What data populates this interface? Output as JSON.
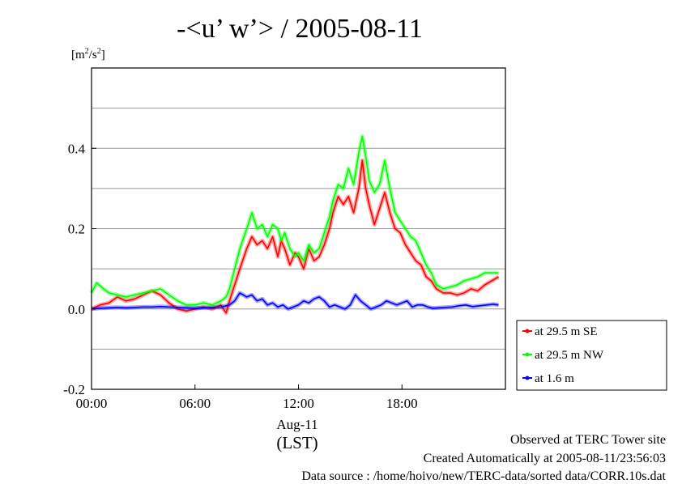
{
  "chart_data": {
    "type": "line",
    "title": "-<u’ w’> / 2005-08-11",
    "ylabel_parts": {
      "base": "[m",
      "sup1": "2",
      "mid": "/s",
      "sup2": "2",
      "end": "]"
    },
    "ylim": [
      -0.2,
      0.6
    ],
    "xlim": [
      0,
      24
    ],
    "y_ticks": [
      -0.2,
      0.0,
      0.2,
      0.4
    ],
    "y_tick_labels": [
      "-0.2",
      "0.0",
      "0.2",
      "0.4"
    ],
    "y_gridlines": [
      -0.1,
      0.0,
      0.1,
      0.2,
      0.3,
      0.4,
      0.5
    ],
    "x_ticks": [
      0,
      6,
      12,
      18
    ],
    "x_tick_labels": [
      "00:00",
      "06:00",
      "12:00",
      "18:00"
    ],
    "x_date_label": "Aug-11",
    "x_axis_label": "(LST)",
    "grid": true,
    "legend_position": "right",
    "series": [
      {
        "name": "at 29.5 m SE",
        "color": "#ff0000",
        "x": [
          0,
          0.5,
          1,
          1.5,
          2,
          2.5,
          3,
          3.5,
          4,
          4.5,
          5,
          5.5,
          6,
          6.5,
          7,
          7.5,
          7.8,
          8,
          8.3,
          8.6,
          9,
          9.3,
          9.6,
          9.9,
          10.2,
          10.5,
          10.8,
          11,
          11.2,
          11.5,
          11.8,
          12,
          12.3,
          12.6,
          12.9,
          13.2,
          13.5,
          13.8,
          14,
          14.3,
          14.6,
          14.9,
          15.2,
          15.5,
          15.7,
          15.9,
          16.1,
          16.4,
          16.7,
          17,
          17.3,
          17.6,
          17.9,
          18.2,
          18.5,
          18.8,
          19.1,
          19.4,
          19.7,
          20,
          20.4,
          20.8,
          21.2,
          21.6,
          22,
          22.4,
          22.8,
          23.2,
          23.6
        ],
        "values": [
          0.0,
          0.01,
          0.015,
          0.03,
          0.02,
          0.025,
          0.035,
          0.045,
          0.035,
          0.015,
          0.0,
          -0.005,
          0.0,
          0.005,
          0.0,
          0.01,
          -0.01,
          0.02,
          0.06,
          0.1,
          0.15,
          0.18,
          0.16,
          0.17,
          0.15,
          0.18,
          0.13,
          0.17,
          0.15,
          0.11,
          0.14,
          0.13,
          0.1,
          0.15,
          0.12,
          0.13,
          0.16,
          0.2,
          0.24,
          0.28,
          0.26,
          0.28,
          0.24,
          0.3,
          0.37,
          0.3,
          0.26,
          0.21,
          0.25,
          0.29,
          0.24,
          0.2,
          0.19,
          0.16,
          0.14,
          0.12,
          0.11,
          0.08,
          0.07,
          0.05,
          0.04,
          0.04,
          0.035,
          0.04,
          0.05,
          0.045,
          0.06,
          0.07,
          0.08
        ]
      },
      {
        "name": "at 29.5 m NW",
        "color": "#00ff00",
        "x": [
          0,
          0.3,
          0.7,
          1,
          1.5,
          2,
          2.5,
          3,
          3.5,
          4,
          4.5,
          5,
          5.5,
          6,
          6.5,
          7,
          7.5,
          7.8,
          8,
          8.3,
          8.6,
          9,
          9.3,
          9.6,
          9.9,
          10.2,
          10.5,
          10.8,
          11,
          11.2,
          11.5,
          11.8,
          12,
          12.3,
          12.6,
          12.9,
          13.2,
          13.5,
          13.8,
          14,
          14.3,
          14.6,
          14.9,
          15.2,
          15.5,
          15.7,
          15.9,
          16.1,
          16.4,
          16.7,
          17,
          17.3,
          17.6,
          17.9,
          18.2,
          18.5,
          18.8,
          19.1,
          19.4,
          19.7,
          20,
          20.4,
          20.8,
          21.2,
          21.6,
          22,
          22.4,
          22.8,
          23.2,
          23.6
        ],
        "values": [
          0.04,
          0.065,
          0.05,
          0.04,
          0.035,
          0.03,
          0.035,
          0.04,
          0.045,
          0.05,
          0.035,
          0.02,
          0.01,
          0.01,
          0.015,
          0.01,
          0.02,
          0.03,
          0.05,
          0.1,
          0.15,
          0.2,
          0.24,
          0.2,
          0.21,
          0.18,
          0.21,
          0.2,
          0.17,
          0.19,
          0.15,
          0.13,
          0.14,
          0.12,
          0.16,
          0.14,
          0.15,
          0.19,
          0.23,
          0.27,
          0.31,
          0.3,
          0.35,
          0.31,
          0.39,
          0.43,
          0.38,
          0.32,
          0.29,
          0.31,
          0.37,
          0.3,
          0.24,
          0.22,
          0.2,
          0.18,
          0.17,
          0.14,
          0.11,
          0.09,
          0.06,
          0.05,
          0.055,
          0.06,
          0.07,
          0.075,
          0.08,
          0.09,
          0.09,
          0.09
        ]
      },
      {
        "name": "at 1.6 m",
        "color": "#0000ff",
        "x": [
          0,
          0.5,
          1,
          1.5,
          2,
          2.5,
          3,
          3.5,
          4,
          4.5,
          5,
          5.5,
          6,
          6.5,
          7,
          7.5,
          8,
          8.3,
          8.6,
          9,
          9.3,
          9.6,
          9.9,
          10.2,
          10.5,
          10.8,
          11.1,
          11.4,
          11.7,
          12,
          12.3,
          12.6,
          12.9,
          13.2,
          13.5,
          13.8,
          14.1,
          14.4,
          14.7,
          15,
          15.3,
          15.6,
          15.9,
          16.2,
          16.5,
          16.8,
          17.1,
          17.4,
          17.7,
          18,
          18.3,
          18.6,
          18.9,
          19.2,
          19.5,
          19.8,
          20.1,
          20.5,
          20.9,
          21.3,
          21.7,
          22.1,
          22.5,
          22.9,
          23.3,
          23.6
        ],
        "values": [
          0.0,
          0.002,
          0.003,
          0.004,
          0.003,
          0.004,
          0.005,
          0.005,
          0.006,
          0.005,
          0.004,
          0.003,
          0.002,
          0.003,
          0.004,
          0.005,
          0.01,
          0.02,
          0.04,
          0.03,
          0.035,
          0.02,
          0.025,
          0.01,
          0.015,
          0.005,
          0.01,
          0.0,
          0.005,
          0.01,
          0.02,
          0.015,
          0.025,
          0.03,
          0.02,
          0.005,
          0.01,
          0.005,
          0.0,
          0.01,
          0.035,
          0.02,
          0.01,
          0.0,
          0.005,
          0.01,
          0.02,
          0.015,
          0.01,
          0.015,
          0.02,
          0.005,
          0.01,
          0.01,
          0.005,
          0.002,
          0.003,
          0.004,
          0.005,
          0.008,
          0.01,
          0.006,
          0.008,
          0.01,
          0.012,
          0.01
        ]
      }
    ]
  },
  "footer": {
    "line1": "Observed at TERC Tower site",
    "line2": "Created Automatically at 2005-08-11/23:56:03",
    "line3": "Data source : /home/hoivo/new/TERC-data/sorted  data/CORR.10s.dat"
  }
}
